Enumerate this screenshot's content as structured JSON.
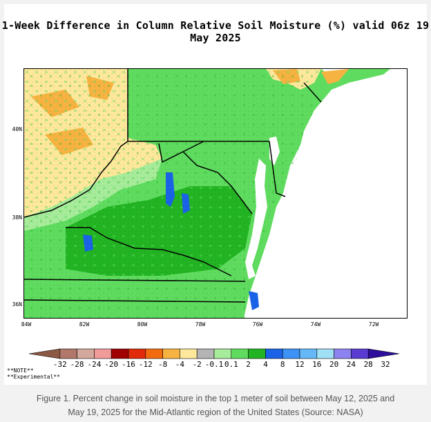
{
  "figure": {
    "title": "1-Week Difference in Column Relative Soil Moisture (%) valid 06z 19 May 2025",
    "caption_line1": "Figure 1. Percent change in soil moisture in the top 1 meter of soil between May 12, 2025 and",
    "caption_line2": "May 19, 2025 for the Mid-Atlantic region of the United States (Source:  NASA)",
    "notes": [
      "**NOTE**",
      "**Experimental**"
    ]
  },
  "map": {
    "region": "Mid-Atlantic United States",
    "lat_ticks": [
      "40N",
      "38N",
      "36N"
    ],
    "lon_ticks": [
      "84W",
      "82W",
      "80W",
      "78W",
      "76W",
      "74W",
      "72W"
    ],
    "legend_labels": [
      "-32",
      "-28",
      "-24",
      "-20",
      "-16",
      "-12",
      "-8",
      "-4",
      "-2",
      "-0.1",
      "0.1",
      "2",
      "4",
      "8",
      "12",
      "16",
      "20",
      "24",
      "28",
      "32"
    ],
    "colors": {
      "water": "#ffffff",
      "bins": [
        "#8c5a44",
        "#b0776a",
        "#d4a89c",
        "#f09a9a",
        "#a10000",
        "#e02a0a",
        "#f26b0f",
        "#f7b341",
        "#fde89b",
        "#b4b4b4",
        "#a6ec9a",
        "#5fdc5f",
        "#22b422",
        "#1a63e6",
        "#3c92f5",
        "#64b8f7",
        "#a0e0f5",
        "#8c82f0",
        "#5a3cd2",
        "#2d0f9b"
      ]
    }
  }
}
